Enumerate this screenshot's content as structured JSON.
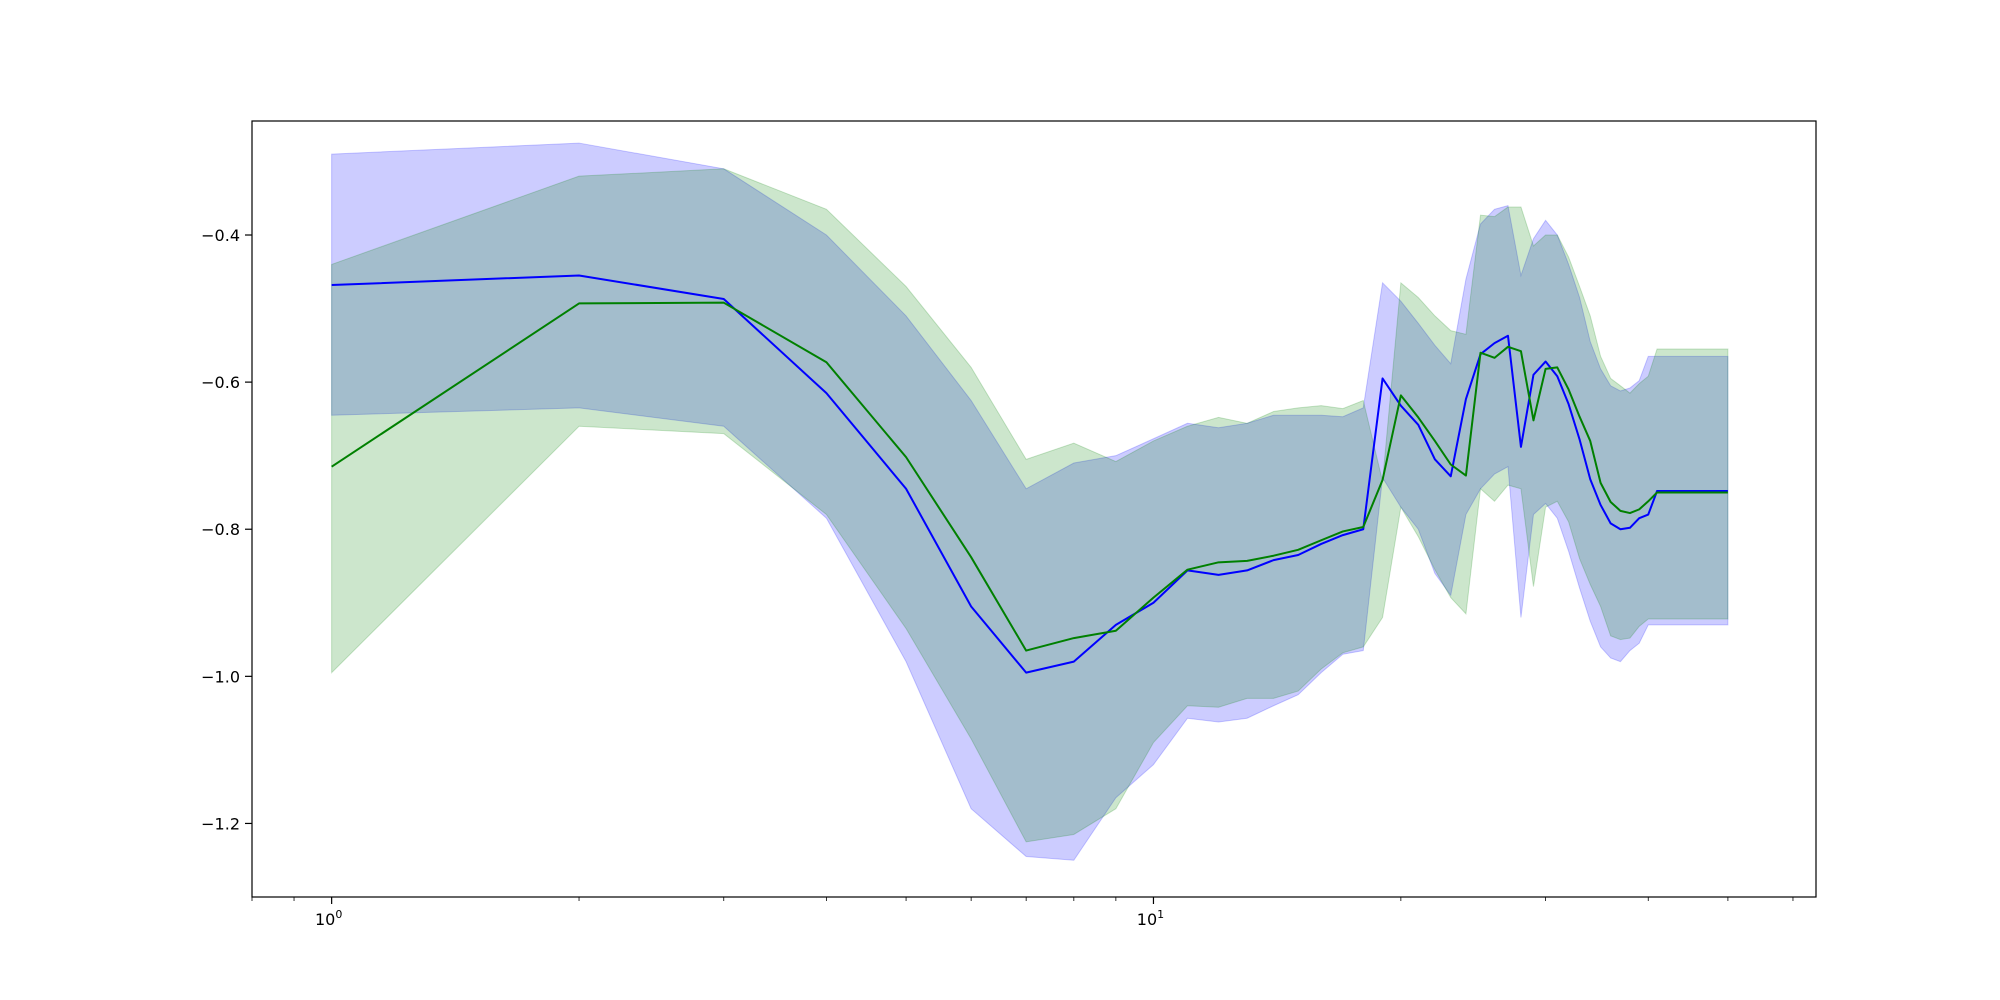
{
  "chart_data": {
    "type": "line",
    "title": "",
    "xlabel": "",
    "ylabel": "",
    "x_scale": "log",
    "xlim": [
      0.8,
      64
    ],
    "ylim": [
      -1.3,
      -0.245
    ],
    "grid": false,
    "legend": "none",
    "x_ticks": [
      {
        "value": 1,
        "base": "10",
        "exp": "0"
      },
      {
        "value": 10,
        "base": "10",
        "exp": "1"
      }
    ],
    "y_ticks": [
      {
        "value": -0.4,
        "label": "−0.4"
      },
      {
        "value": -0.6,
        "label": "−0.6"
      },
      {
        "value": -0.8,
        "label": "−0.8"
      },
      {
        "value": -1.0,
        "label": "−1.0"
      },
      {
        "value": -1.2,
        "label": "−1.2"
      }
    ],
    "x": [
      1,
      2,
      3,
      4,
      5,
      6,
      7,
      8,
      9,
      10,
      11,
      12,
      13,
      14,
      15,
      16,
      17,
      18,
      19,
      20,
      21,
      22,
      23,
      24,
      25,
      26,
      27,
      28,
      29,
      30,
      31,
      32,
      33,
      34,
      35,
      36,
      37,
      38,
      39,
      40,
      41,
      42,
      43,
      44,
      45,
      46,
      47,
      48,
      49,
      50
    ],
    "series": [
      {
        "color": "#0000ff",
        "band_color": "#0000ff",
        "values": [
          -0.468,
          -0.455,
          -0.487,
          -0.615,
          -0.745,
          -0.905,
          -0.995,
          -0.98,
          -0.93,
          -0.9,
          -0.856,
          -0.862,
          -0.856,
          -0.842,
          -0.835,
          -0.82,
          -0.808,
          -0.8,
          -0.595,
          -0.632,
          -0.658,
          -0.705,
          -0.728,
          -0.623,
          -0.562,
          -0.547,
          -0.537,
          -0.688,
          -0.59,
          -0.572,
          -0.592,
          -0.63,
          -0.678,
          -0.732,
          -0.767,
          -0.792,
          -0.8,
          -0.798,
          -0.785,
          -0.78,
          -0.748,
          -0.748,
          -0.748,
          -0.748,
          -0.748,
          -0.748,
          -0.748,
          -0.748,
          -0.748,
          -0.748
        ],
        "lower": [
          -0.645,
          -0.635,
          -0.66,
          -0.785,
          -0.98,
          -1.18,
          -1.245,
          -1.25,
          -1.165,
          -1.12,
          -1.057,
          -1.062,
          -1.057,
          -1.04,
          -1.025,
          -0.995,
          -0.97,
          -0.965,
          -0.73,
          -0.77,
          -0.8,
          -0.86,
          -0.89,
          -0.78,
          -0.745,
          -0.725,
          -0.715,
          -0.92,
          -0.78,
          -0.765,
          -0.785,
          -0.83,
          -0.88,
          -0.925,
          -0.96,
          -0.975,
          -0.98,
          -0.965,
          -0.955,
          -0.93,
          -0.93,
          -0.93,
          -0.93,
          -0.93,
          -0.93,
          -0.93,
          -0.93,
          -0.93,
          -0.93,
          -0.93
        ],
        "upper": [
          -0.29,
          -0.275,
          -0.31,
          -0.4,
          -0.51,
          -0.625,
          -0.745,
          -0.71,
          -0.7,
          -0.677,
          -0.656,
          -0.662,
          -0.656,
          -0.645,
          -0.645,
          -0.645,
          -0.647,
          -0.635,
          -0.465,
          -0.49,
          -0.52,
          -0.55,
          -0.575,
          -0.46,
          -0.385,
          -0.365,
          -0.36,
          -0.455,
          -0.405,
          -0.38,
          -0.4,
          -0.44,
          -0.485,
          -0.545,
          -0.582,
          -0.605,
          -0.612,
          -0.608,
          -0.598,
          -0.565,
          -0.565,
          -0.565,
          -0.565,
          -0.565,
          -0.565,
          -0.565,
          -0.565,
          -0.565,
          -0.565,
          -0.565
        ]
      },
      {
        "color": "#008000",
        "band_color": "#008000",
        "values": [
          -0.715,
          -0.493,
          -0.492,
          -0.573,
          -0.702,
          -0.838,
          -0.965,
          -0.948,
          -0.938,
          -0.893,
          -0.855,
          -0.845,
          -0.843,
          -0.836,
          -0.828,
          -0.815,
          -0.803,
          -0.797,
          -0.733,
          -0.618,
          -0.648,
          -0.68,
          -0.712,
          -0.727,
          -0.56,
          -0.567,
          -0.552,
          -0.558,
          -0.652,
          -0.582,
          -0.58,
          -0.61,
          -0.647,
          -0.68,
          -0.737,
          -0.763,
          -0.775,
          -0.778,
          -0.773,
          -0.762,
          -0.75,
          -0.75,
          -0.75,
          -0.75,
          -0.75,
          -0.75,
          -0.75,
          -0.75,
          -0.75,
          -0.75
        ],
        "lower": [
          -0.995,
          -0.66,
          -0.67,
          -0.78,
          -0.935,
          -1.085,
          -1.225,
          -1.215,
          -1.18,
          -1.09,
          -1.04,
          -1.042,
          -1.03,
          -1.03,
          -1.02,
          -0.99,
          -0.968,
          -0.96,
          -0.92,
          -0.77,
          -0.81,
          -0.855,
          -0.893,
          -0.915,
          -0.745,
          -0.762,
          -0.74,
          -0.745,
          -0.878,
          -0.77,
          -0.762,
          -0.79,
          -0.84,
          -0.875,
          -0.905,
          -0.945,
          -0.95,
          -0.948,
          -0.932,
          -0.922,
          -0.922,
          -0.922,
          -0.922,
          -0.922,
          -0.922,
          -0.922,
          -0.922,
          -0.922,
          -0.922,
          -0.922
        ],
        "upper": [
          -0.44,
          -0.32,
          -0.31,
          -0.365,
          -0.47,
          -0.58,
          -0.705,
          -0.683,
          -0.708,
          -0.68,
          -0.66,
          -0.648,
          -0.656,
          -0.64,
          -0.635,
          -0.632,
          -0.636,
          -0.625,
          -0.735,
          -0.465,
          -0.485,
          -0.51,
          -0.53,
          -0.535,
          -0.373,
          -0.375,
          -0.362,
          -0.362,
          -0.415,
          -0.4,
          -0.4,
          -0.43,
          -0.47,
          -0.51,
          -0.565,
          -0.595,
          -0.605,
          -0.615,
          -0.602,
          -0.592,
          -0.555,
          -0.555,
          -0.555,
          -0.555,
          -0.555,
          -0.555,
          -0.555,
          -0.555,
          -0.555,
          -0.555
        ]
      }
    ]
  }
}
